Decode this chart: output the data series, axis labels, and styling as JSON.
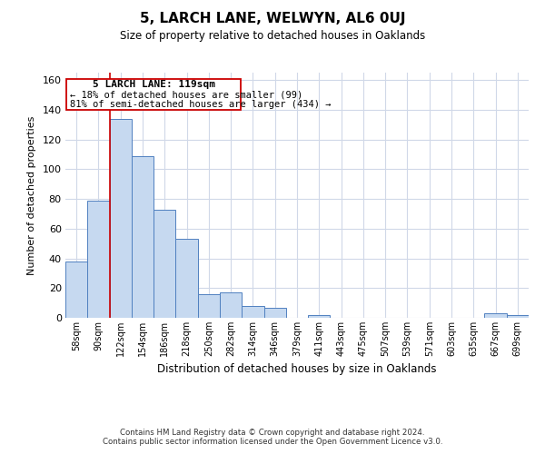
{
  "title": "5, LARCH LANE, WELWYN, AL6 0UJ",
  "subtitle": "Size of property relative to detached houses in Oaklands",
  "xlabel": "Distribution of detached houses by size in Oaklands",
  "ylabel": "Number of detached properties",
  "bar_labels": [
    "58sqm",
    "90sqm",
    "122sqm",
    "154sqm",
    "186sqm",
    "218sqm",
    "250sqm",
    "282sqm",
    "314sqm",
    "346sqm",
    "379sqm",
    "411sqm",
    "443sqm",
    "475sqm",
    "507sqm",
    "539sqm",
    "571sqm",
    "603sqm",
    "635sqm",
    "667sqm",
    "699sqm"
  ],
  "bar_values": [
    38,
    79,
    134,
    109,
    73,
    53,
    16,
    17,
    8,
    7,
    0,
    2,
    0,
    0,
    0,
    0,
    0,
    0,
    0,
    3,
    2
  ],
  "bar_color": "#c6d9f0",
  "bar_edge_color": "#5080c0",
  "ylim": [
    0,
    165
  ],
  "yticks": [
    0,
    20,
    40,
    60,
    80,
    100,
    120,
    140,
    160
  ],
  "property_line_color": "#cc0000",
  "annotation_title": "5 LARCH LANE: 119sqm",
  "annotation_line1": "← 18% of detached houses are smaller (99)",
  "annotation_line2": "81% of semi-detached houses are larger (434) →",
  "annotation_box_color": "#cc0000",
  "footnote1": "Contains HM Land Registry data © Crown copyright and database right 2024.",
  "footnote2": "Contains public sector information licensed under the Open Government Licence v3.0.",
  "background_color": "#ffffff",
  "grid_color": "#d0d8e8"
}
